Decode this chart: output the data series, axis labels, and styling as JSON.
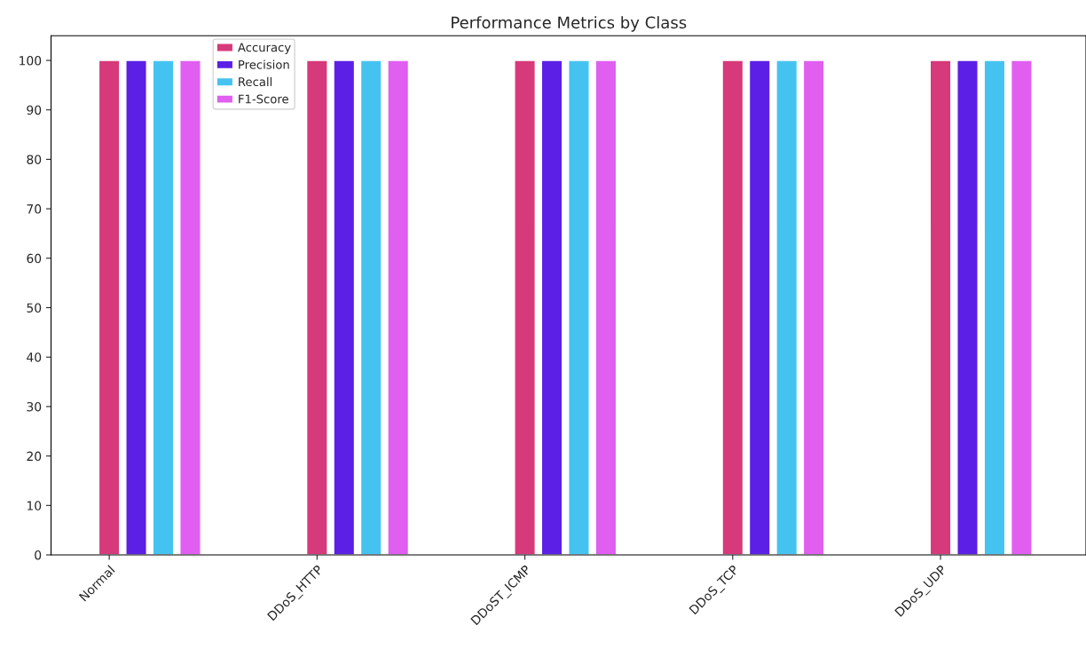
{
  "chart_data": {
    "type": "bar",
    "title": "Performance Metrics by Class",
    "categories": [
      "Normal",
      "DDoS_HTTP",
      "DDoST_ICMP",
      "DDoS_TCP",
      "DDoS_UDP"
    ],
    "series": [
      {
        "name": "Accuracy",
        "color": "#d63a7a",
        "values": [
          100,
          100,
          100,
          100,
          100
        ]
      },
      {
        "name": "Precision",
        "color": "#5b1fe6",
        "values": [
          100,
          100,
          100,
          100,
          100
        ]
      },
      {
        "name": "Recall",
        "color": "#45c3f0",
        "values": [
          100,
          100,
          100,
          100,
          100
        ]
      },
      {
        "name": "F1-Score",
        "color": "#e05ef0",
        "values": [
          100,
          100,
          100,
          100,
          100
        ]
      }
    ],
    "ylim": [
      0,
      105
    ],
    "yticks": [
      0,
      10,
      20,
      30,
      40,
      50,
      60,
      70,
      80,
      90,
      100
    ],
    "grid": false,
    "legend": "top left"
  }
}
